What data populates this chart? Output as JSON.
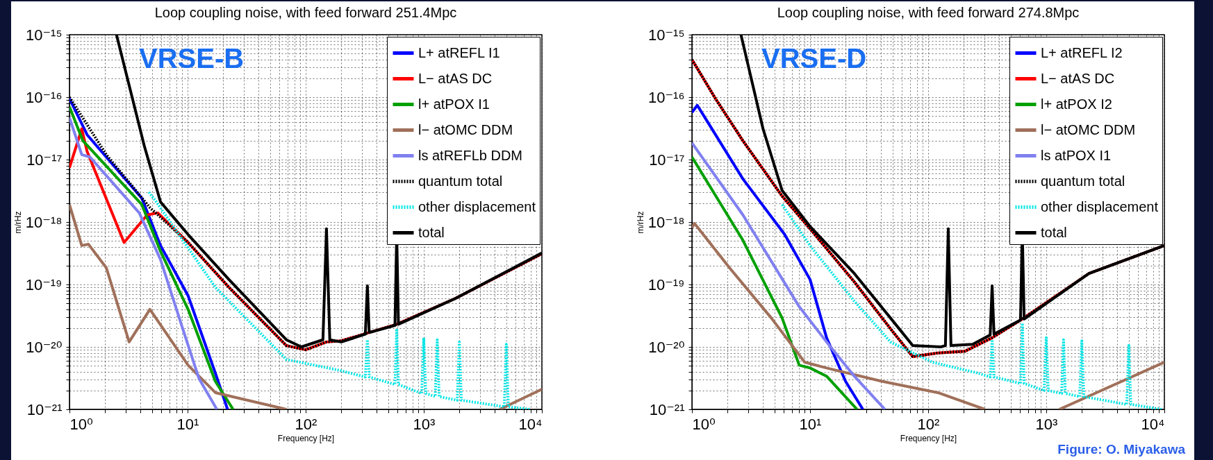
{
  "chart_data": [
    {
      "type": "line",
      "title": "Loop coupling noise, with feed forward 251.4Mpc",
      "xlabel": "Frequency [Hz]",
      "ylabel": "m/rHz",
      "log": "xy",
      "xlim": [
        1,
        10000
      ],
      "ylim": [
        1e-21,
        1e-15
      ],
      "grid": true,
      "legend": "top right",
      "annotations": [
        "VRSE-B"
      ],
      "xticks": [
        {
          "value": 1,
          "label": "10⁰"
        },
        {
          "value": 2,
          "label": null
        },
        {
          "value": 3,
          "label": null
        },
        {
          "value": 4,
          "label": null
        },
        {
          "value": 5,
          "label": null
        },
        {
          "value": 6,
          "label": null
        },
        {
          "value": 7,
          "label": null
        },
        {
          "value": 8,
          "label": null
        },
        {
          "value": 9,
          "label": null
        },
        {
          "value": 10,
          "label": "10¹"
        },
        {
          "value": 20,
          "label": null
        },
        {
          "value": 30,
          "label": null
        },
        {
          "value": 40,
          "label": null
        },
        {
          "value": 50,
          "label": null
        },
        {
          "value": 60,
          "label": null
        },
        {
          "value": 70,
          "label": null
        },
        {
          "value": 80,
          "label": null
        },
        {
          "value": 90,
          "label": null
        },
        {
          "value": 100,
          "label": "10²"
        },
        {
          "value": 200,
          "label": null
        },
        {
          "value": 300,
          "label": null
        },
        {
          "value": 400,
          "label": null
        },
        {
          "value": 500,
          "label": null
        },
        {
          "value": 600,
          "label": null
        },
        {
          "value": 700,
          "label": null
        },
        {
          "value": 800,
          "label": null
        },
        {
          "value": 900,
          "label": null
        },
        {
          "value": 1000,
          "label": "10³"
        },
        {
          "value": 2000,
          "label": null
        },
        {
          "value": 3000,
          "label": null
        },
        {
          "value": 4000,
          "label": null
        },
        {
          "value": 5000,
          "label": null
        },
        {
          "value": 6000,
          "label": null
        },
        {
          "value": 7000,
          "label": null
        },
        {
          "value": 8000,
          "label": null
        },
        {
          "value": 9000,
          "label": null
        },
        {
          "value": 10000,
          "label": "10⁴"
        }
      ],
      "yticks": [
        {
          "value": 1e-21,
          "label": "10⁻²¹"
        },
        {
          "value": 2e-21,
          "label": null
        },
        {
          "value": 3e-21,
          "label": null
        },
        {
          "value": 4e-21,
          "label": null
        },
        {
          "value": 5e-21,
          "label": null
        },
        {
          "value": 6e-21,
          "label": null
        },
        {
          "value": 7e-21,
          "label": null
        },
        {
          "value": 8e-21,
          "label": null
        },
        {
          "value": 9e-21,
          "label": null
        },
        {
          "value": 1e-20,
          "label": "10⁻²⁰"
        },
        {
          "value": 2e-20,
          "label": null
        },
        {
          "value": 3e-20,
          "label": null
        },
        {
          "value": 4e-20,
          "label": null
        },
        {
          "value": 5e-20,
          "label": null
        },
        {
          "value": 6e-20,
          "label": null
        },
        {
          "value": 7e-20,
          "label": null
        },
        {
          "value": 8e-20,
          "label": null
        },
        {
          "value": 9e-20,
          "label": null
        },
        {
          "value": 1e-19,
          "label": "10⁻¹⁹"
        },
        {
          "value": 2e-19,
          "label": null
        },
        {
          "value": 3e-19,
          "label": null
        },
        {
          "value": 4e-19,
          "label": null
        },
        {
          "value": 5e-19,
          "label": null
        },
        {
          "value": 6e-19,
          "label": null
        },
        {
          "value": 7e-19,
          "label": null
        },
        {
          "value": 8e-19,
          "label": null
        },
        {
          "value": 9e-19,
          "label": null
        },
        {
          "value": 1e-18,
          "label": "10⁻¹⁸"
        },
        {
          "value": 2e-18,
          "label": null
        },
        {
          "value": 3e-18,
          "label": null
        },
        {
          "value": 4e-18,
          "label": null
        },
        {
          "value": 5e-18,
          "label": null
        },
        {
          "value": 6e-18,
          "label": null
        },
        {
          "value": 7e-18,
          "label": null
        },
        {
          "value": 8e-18,
          "label": null
        },
        {
          "value": 9e-18,
          "label": null
        },
        {
          "value": 1e-17,
          "label": "10⁻¹⁷"
        },
        {
          "value": 2e-17,
          "label": null
        },
        {
          "value": 3e-17,
          "label": null
        },
        {
          "value": 4e-17,
          "label": null
        },
        {
          "value": 5e-17,
          "label": null
        },
        {
          "value": 6e-17,
          "label": null
        },
        {
          "value": 7e-17,
          "label": null
        },
        {
          "value": 8e-17,
          "label": null
        },
        {
          "value": 9e-17,
          "label": null
        },
        {
          "value": 1e-16,
          "label": "10⁻¹⁶"
        },
        {
          "value": 2e-16,
          "label": null
        },
        {
          "value": 3e-16,
          "label": null
        },
        {
          "value": 4e-16,
          "label": null
        },
        {
          "value": 5e-16,
          "label": null
        },
        {
          "value": 6e-16,
          "label": null
        },
        {
          "value": 7e-16,
          "label": null
        },
        {
          "value": 8e-16,
          "label": null
        },
        {
          "value": 9e-16,
          "label": null
        },
        {
          "value": 1e-15,
          "label": "10⁻¹⁵"
        }
      ],
      "series": [
        {
          "name": "L+ atREFL I1",
          "color": "#0000ff",
          "x": [
            1,
            1.41,
            4.1,
            5.9,
            10.1,
            17.2,
            21.8
          ],
          "values": [
            9.5e-17,
            2.5e-17,
            2.4e-18,
            4.2e-19,
            6.6e-20,
            3.8e-21,
            1e-21
          ]
        },
        {
          "name": "L− atAS DC",
          "color": "#ff0000",
          "x": [
            1,
            1.27,
            1.41,
            2.9,
            4.55,
            5.6,
            10.1,
            22.4,
            68.6,
            100,
            150,
            200,
            590,
            1860,
            10000
          ],
          "values": [
            7.4e-18,
            3.1e-17,
            1.35e-17,
            4.7e-19,
            1.3e-18,
            1.4e-18,
            4.7e-19,
            9e-20,
            1.05e-20,
            9e-21,
            1.2e-20,
            1.25e-20,
            2.3e-20,
            6e-20,
            3.1e-19
          ]
        },
        {
          "name": "l+ atPOX I1",
          "color": "#00a000",
          "x": [
            1,
            1.3,
            4.1,
            5.9,
            10.1,
            17.2,
            24.3
          ],
          "values": [
            7e-17,
            2e-17,
            1.9e-18,
            3.4e-19,
            4e-20,
            2.8e-21,
            1e-21
          ]
        },
        {
          "name": "l− atOMC DDM",
          "color": "#a0705a",
          "x": [
            1,
            1.27,
            1.45,
            2.05,
            3.2,
            4.8,
            10.1,
            17.2,
            68.6,
            1000,
            4400,
            10000
          ],
          "values": [
            1.9e-18,
            4.2e-19,
            4.4e-19,
            1.85e-19,
            1.2e-20,
            4e-20,
            5.1e-21,
            1.85e-21,
            1e-21,
            null,
            1e-21,
            2.1e-21
          ]
        },
        {
          "name": "ls atREFLb DDM",
          "color": "#8080f0",
          "x": [
            1,
            1.27,
            1.49,
            3.9,
            5.9,
            9.1,
            12.5,
            17.7
          ],
          "values": [
            4.7e-17,
            1.2e-17,
            1.1e-17,
            1.4e-18,
            2.5e-19,
            1.95e-20,
            3.1e-21,
            1e-21
          ]
        },
        {
          "name": "quantum total",
          "color": "#000000",
          "line_style": "dotted",
          "x": [
            1,
            2.05,
            4.8,
            10.1,
            22.4,
            68.6,
            100,
            150,
            200,
            590,
            1860,
            10000
          ],
          "values": [
            1e-16,
            1.2e-17,
            1.7e-18,
            4.7e-19,
            9e-20,
            1.05e-20,
            9e-21,
            1.2e-20,
            1.25e-20,
            2.3e-20,
            6e-20,
            3.1e-19
          ]
        },
        {
          "name": "other displacement",
          "color": "#00e5e5",
          "line_style": "dotted",
          "x": [
            4.7,
            5.35,
            17.2,
            68.6,
            195,
            320,
            333,
            346,
            570,
            590,
            610,
            960,
            1000,
            1040,
            1250,
            1300,
            1350,
            1920,
            2000,
            2080,
            4800,
            5000,
            5200,
            7900
          ],
          "values": [
            3e-18,
            2.2e-18,
            9e-20,
            6.3e-21,
            4.2e-21,
            3.3e-21,
            1.3e-20,
            3.3e-21,
            2.5e-21,
            1.95e-20,
            2.5e-21,
            1.8e-21,
            1.4e-20,
            1.8e-21,
            1.6e-21,
            1.3e-20,
            1.6e-21,
            1.4e-21,
            1.2e-20,
            1.4e-21,
            1.1e-21,
            1.1e-20,
            1.1e-21,
            1e-21
          ]
        },
        {
          "name": "total",
          "color": "#000000",
          "x": [
            2.5,
            4.3,
            5.9,
            10.1,
            22.4,
            68.6,
            92,
            140,
            150,
            160,
            200,
            320,
            333,
            345,
            570,
            590,
            610,
            1860,
            10000
          ],
          "values": [
            1e-15,
            1.66e-17,
            2.1e-18,
            6.3e-19,
            1.2e-19,
            1.3e-20,
            1e-20,
            1.3e-20,
            7.8e-19,
            1.3e-20,
            1.2e-20,
            1.6e-20,
            9.5e-20,
            1.7e-20,
            2.2e-20,
            6.6e-19,
            2.3e-20,
            6e-20,
            3.2e-19
          ]
        }
      ]
    },
    {
      "type": "line",
      "title": "Loop coupling noise, with feed forward 274.8Mpc",
      "xlabel": "Frequency [Hz]",
      "ylabel": "m/rHz",
      "log": "xy",
      "xlim": [
        1,
        10000
      ],
      "ylim": [
        1e-21,
        1e-15
      ],
      "grid": true,
      "legend": "top right",
      "annotations": [
        "VRSE-D",
        "Figure: O. Miyakawa"
      ],
      "xticks": [
        {
          "value": 1,
          "label": "10⁰"
        },
        {
          "value": 2,
          "label": null
        },
        {
          "value": 3,
          "label": null
        },
        {
          "value": 4,
          "label": null
        },
        {
          "value": 5,
          "label": null
        },
        {
          "value": 6,
          "label": null
        },
        {
          "value": 7,
          "label": null
        },
        {
          "value": 8,
          "label": null
        },
        {
          "value": 9,
          "label": null
        },
        {
          "value": 10,
          "label": "10¹"
        },
        {
          "value": 20,
          "label": null
        },
        {
          "value": 30,
          "label": null
        },
        {
          "value": 40,
          "label": null
        },
        {
          "value": 50,
          "label": null
        },
        {
          "value": 60,
          "label": null
        },
        {
          "value": 70,
          "label": null
        },
        {
          "value": 80,
          "label": null
        },
        {
          "value": 90,
          "label": null
        },
        {
          "value": 100,
          "label": "10²"
        },
        {
          "value": 200,
          "label": null
        },
        {
          "value": 300,
          "label": null
        },
        {
          "value": 400,
          "label": null
        },
        {
          "value": 500,
          "label": null
        },
        {
          "value": 600,
          "label": null
        },
        {
          "value": 700,
          "label": null
        },
        {
          "value": 800,
          "label": null
        },
        {
          "value": 900,
          "label": null
        },
        {
          "value": 1000,
          "label": "10³"
        },
        {
          "value": 2000,
          "label": null
        },
        {
          "value": 3000,
          "label": null
        },
        {
          "value": 4000,
          "label": null
        },
        {
          "value": 5000,
          "label": null
        },
        {
          "value": 6000,
          "label": null
        },
        {
          "value": 7000,
          "label": null
        },
        {
          "value": 8000,
          "label": null
        },
        {
          "value": 9000,
          "label": null
        },
        {
          "value": 10000,
          "label": "10⁴"
        }
      ],
      "yticks": [
        {
          "value": 1e-21,
          "label": "10⁻²¹"
        },
        {
          "value": 2e-21,
          "label": null
        },
        {
          "value": 3e-21,
          "label": null
        },
        {
          "value": 4e-21,
          "label": null
        },
        {
          "value": 5e-21,
          "label": null
        },
        {
          "value": 6e-21,
          "label": null
        },
        {
          "value": 7e-21,
          "label": null
        },
        {
          "value": 8e-21,
          "label": null
        },
        {
          "value": 9e-21,
          "label": null
        },
        {
          "value": 1e-20,
          "label": "10⁻²⁰"
        },
        {
          "value": 2e-20,
          "label": null
        },
        {
          "value": 3e-20,
          "label": null
        },
        {
          "value": 4e-20,
          "label": null
        },
        {
          "value": 5e-20,
          "label": null
        },
        {
          "value": 6e-20,
          "label": null
        },
        {
          "value": 7e-20,
          "label": null
        },
        {
          "value": 8e-20,
          "label": null
        },
        {
          "value": 9e-20,
          "label": null
        },
        {
          "value": 1e-19,
          "label": "10⁻¹⁹"
        },
        {
          "value": 2e-19,
          "label": null
        },
        {
          "value": 3e-19,
          "label": null
        },
        {
          "value": 4e-19,
          "label": null
        },
        {
          "value": 5e-19,
          "label": null
        },
        {
          "value": 6e-19,
          "label": null
        },
        {
          "value": 7e-19,
          "label": null
        },
        {
          "value": 8e-19,
          "label": null
        },
        {
          "value": 9e-19,
          "label": null
        },
        {
          "value": 1e-18,
          "label": "10⁻¹⁸"
        },
        {
          "value": 2e-18,
          "label": null
        },
        {
          "value": 3e-18,
          "label": null
        },
        {
          "value": 4e-18,
          "label": null
        },
        {
          "value": 5e-18,
          "label": null
        },
        {
          "value": 6e-18,
          "label": null
        },
        {
          "value": 7e-18,
          "label": null
        },
        {
          "value": 8e-18,
          "label": null
        },
        {
          "value": 9e-18,
          "label": null
        },
        {
          "value": 1e-17,
          "label": "10⁻¹⁷"
        },
        {
          "value": 2e-17,
          "label": null
        },
        {
          "value": 3e-17,
          "label": null
        },
        {
          "value": 4e-17,
          "label": null
        },
        {
          "value": 5e-17,
          "label": null
        },
        {
          "value": 6e-17,
          "label": null
        },
        {
          "value": 7e-17,
          "label": null
        },
        {
          "value": 8e-17,
          "label": null
        },
        {
          "value": 9e-17,
          "label": null
        },
        {
          "value": 1e-16,
          "label": "10⁻¹⁶"
        },
        {
          "value": 2e-16,
          "label": null
        },
        {
          "value": 3e-16,
          "label": null
        },
        {
          "value": 4e-16,
          "label": null
        },
        {
          "value": 5e-16,
          "label": null
        },
        {
          "value": 6e-16,
          "label": null
        },
        {
          "value": 7e-16,
          "label": null
        },
        {
          "value": 8e-16,
          "label": null
        },
        {
          "value": 9e-16,
          "label": null
        },
        {
          "value": 1e-15,
          "label": "10⁻¹⁵"
        }
      ],
      "series": [
        {
          "name": "L+ atREFL I2",
          "color": "#0000ff",
          "x": [
            1,
            1.11,
            2.7,
            6.1,
            10,
            13.8,
            20,
            28
          ],
          "values": [
            5.7e-17,
            7.4e-17,
            4.9e-18,
            6.3e-19,
            1.2e-19,
            1.4e-20,
            2.8e-21,
            1e-21
          ]
        },
        {
          "name": "L− atAS DC",
          "color": "#ff0000",
          "x": [
            1,
            1.58,
            2.7,
            5.8,
            10,
            23.7,
            48,
            74,
            121,
            204,
            348,
            627,
            2300,
            10000
          ],
          "values": [
            4e-16,
            9.5e-17,
            2e-17,
            2.6e-18,
            7.8e-19,
            1.1e-19,
            1.95e-20,
            7e-21,
            8e-21,
            8.5e-21,
            1.4e-20,
            2.8e-20,
            1.5e-19,
            4.2e-19
          ]
        },
        {
          "name": "l+ atPOX I2",
          "color": "#00a000",
          "x": [
            1,
            2.7,
            5.8,
            8.1,
            10,
            13.8,
            25
          ],
          "values": [
            1.1e-17,
            5.1e-19,
            2.9e-20,
            5.1e-21,
            4.6e-21,
            3.4e-21,
            1e-21
          ]
        },
        {
          "name": "l− atOMC DDM",
          "color": "#a0705a",
          "x": [
            1,
            1.05,
            2.08,
            4.7,
            9,
            13.8,
            41,
            121,
            302,
            700,
            1290,
            10000
          ],
          "values": [
            8.1e-19,
            9.5e-19,
            1.85e-19,
            2.9e-20,
            5.7e-21,
            4.6e-21,
            2.8e-21,
            1.85e-21,
            1e-21,
            null,
            1e-21,
            5.7e-21
          ]
        },
        {
          "name": "ls atPOX I1",
          "color": "#8080f0",
          "x": [
            1,
            2.7,
            8.1,
            13.8,
            23.7,
            43
          ],
          "values": [
            1.85e-17,
            1.3e-18,
            4.4e-20,
            1.2e-20,
            3.4e-21,
            1e-21
          ]
        },
        {
          "name": "quantum total",
          "color": "#000000",
          "line_style": "dotted",
          "x": [
            1,
            1.58,
            2.7,
            5.8,
            10,
            23.7,
            48,
            74,
            121,
            204,
            348,
            627,
            2300,
            10000
          ],
          "values": [
            4e-16,
            9.5e-17,
            2e-17,
            2.6e-18,
            7.8e-19,
            1.1e-19,
            1.95e-20,
            7e-21,
            8e-21,
            8.5e-21,
            1.4e-20,
            2.8e-20,
            1.5e-19,
            4.2e-19
          ]
        },
        {
          "name": "other displacement",
          "color": "#00e5e5",
          "line_style": "dotted",
          "x": [
            5.8,
            10,
            23.7,
            48,
            108,
            265,
            335,
            348,
            361,
            605,
            627,
            650,
            960,
            1000,
            1040,
            1350,
            1400,
            1450,
            1920,
            2000,
            2080,
            4800,
            5000,
            5200,
            9500
          ],
          "values": [
            1.9e-18,
            4.2e-19,
            5.4e-20,
            1.2e-20,
            5.7e-21,
            3.8e-21,
            3.3e-21,
            1.3e-20,
            3.3e-21,
            2.6e-21,
            2.4e-20,
            2.6e-21,
            2e-21,
            1.4e-20,
            2e-21,
            1.8e-21,
            1.3e-20,
            1.8e-21,
            1.6e-21,
            1.25e-20,
            1.6e-21,
            1.2e-21,
            1.05e-20,
            1.2e-21,
            1e-21
          ]
        },
        {
          "name": "total",
          "color": "#000000",
          "x": [
            2.6,
            4,
            5.8,
            10,
            23.7,
            48,
            74,
            128,
            140,
            148,
            156,
            238,
            335,
            348,
            361,
            605,
            627,
            650,
            2300,
            10000
          ],
          "values": [
            1e-15,
            3.1e-17,
            3.2e-18,
            8.5e-19,
            1.5e-19,
            2.9e-20,
            1.05e-20,
            1e-20,
            1.05e-20,
            7.8e-19,
            1.05e-20,
            1.1e-20,
            1.55e-20,
            9.5e-20,
            1.6e-20,
            2.7e-20,
            7e-19,
            2.8e-20,
            1.5e-19,
            4.2e-19
          ]
        }
      ]
    }
  ]
}
